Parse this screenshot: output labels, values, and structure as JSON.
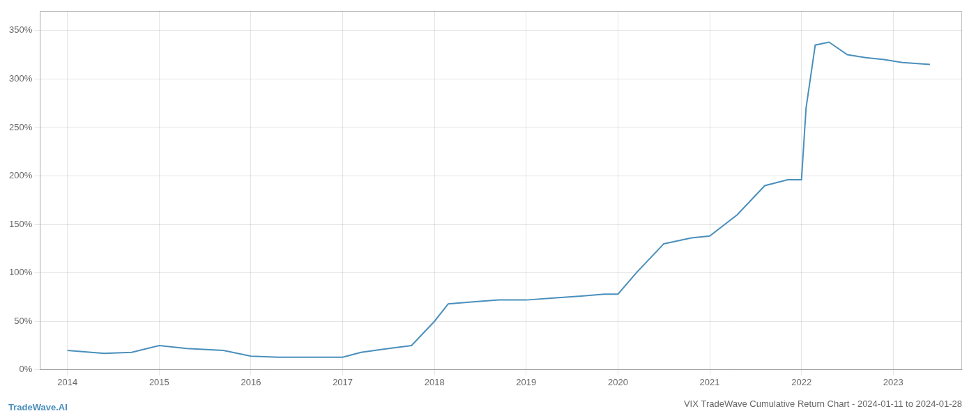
{
  "chart_data": {
    "type": "line",
    "title": "VIX TradeWave Cumulative Return Chart - 2024-01-11 to 2024-01-28",
    "annotations": [
      "TradeWave.AI"
    ],
    "x": [
      2014.0,
      2014.4,
      2014.7,
      2015.0,
      2015.3,
      2015.7,
      2016.0,
      2016.3,
      2016.7,
      2017.0,
      2017.2,
      2017.5,
      2017.75,
      2018.0,
      2018.15,
      2018.4,
      2018.7,
      2019.0,
      2019.3,
      2019.6,
      2019.85,
      2020.0,
      2020.2,
      2020.5,
      2020.8,
      2021.0,
      2021.3,
      2021.6,
      2021.85,
      2022.0,
      2022.05,
      2022.15,
      2022.3,
      2022.5,
      2022.7,
      2022.9,
      2023.1,
      2023.4
    ],
    "values": [
      20,
      17,
      18,
      25,
      22,
      20,
      14,
      13,
      13,
      13,
      18,
      22,
      25,
      50,
      68,
      70,
      72,
      72,
      74,
      76,
      78,
      78,
      100,
      130,
      136,
      138,
      160,
      190,
      196,
      196,
      270,
      335,
      338,
      325,
      322,
      320,
      317,
      315
    ],
    "color": "#4a8fbc",
    "xlim": [
      2013.7,
      2023.75
    ],
    "ylim": [
      0,
      370
    ],
    "xticks": [
      2014,
      2015,
      2016,
      2017,
      2018,
      2019,
      2020,
      2021,
      2022,
      2023
    ],
    "yticks": [
      {
        "value": 0,
        "label": "0%"
      },
      {
        "value": 50,
        "label": "50%"
      },
      {
        "value": 100,
        "label": "100%"
      },
      {
        "value": 150,
        "label": "150%"
      },
      {
        "value": 200,
        "label": "200%"
      },
      {
        "value": 250,
        "label": "250%"
      },
      {
        "value": 300,
        "label": "300%"
      },
      {
        "value": 350,
        "label": "350%"
      }
    ],
    "grid": true
  }
}
